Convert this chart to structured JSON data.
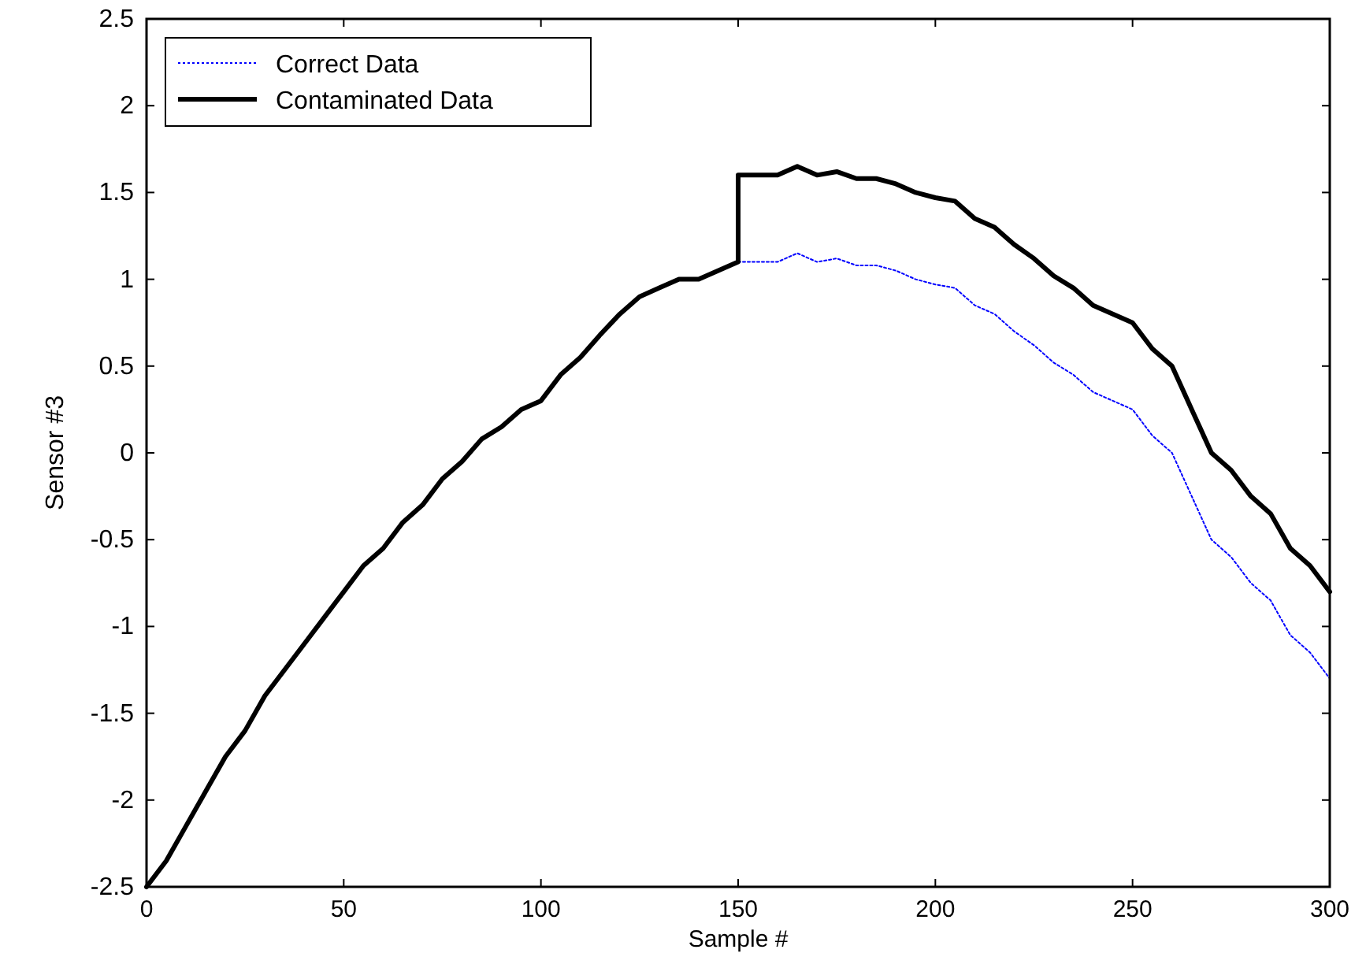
{
  "chart_data": {
    "type": "line",
    "xlabel": "Sample #",
    "ylabel": "Sensor #3",
    "xlim": [
      0,
      300
    ],
    "ylim": [
      -2.5,
      2.5
    ],
    "xticks": [
      0,
      50,
      100,
      150,
      200,
      250,
      300
    ],
    "yticks": [
      -2.5,
      -2,
      -1.5,
      -1,
      -0.5,
      0,
      0.5,
      1,
      1.5,
      2,
      2.5
    ],
    "grid": false,
    "legend": "top left",
    "series": [
      {
        "name": "Correct Data",
        "color": "#0000ff",
        "line_style": "dotted",
        "x": [
          150,
          155,
          160,
          165,
          170,
          175,
          180,
          185,
          190,
          195,
          200,
          205,
          210,
          215,
          220,
          225,
          230,
          235,
          240,
          245,
          250,
          255,
          260,
          265,
          270,
          275,
          280,
          285,
          290,
          295,
          300
        ],
        "values": [
          1.1,
          1.1,
          1.1,
          1.15,
          1.1,
          1.12,
          1.08,
          1.08,
          1.05,
          1,
          0.97,
          0.95,
          0.85,
          0.8,
          0.7,
          0.62,
          0.52,
          0.45,
          0.35,
          0.3,
          0.25,
          0.1,
          0,
          -0.25,
          -0.5,
          -0.6,
          -0.75,
          -0.85,
          -1.05,
          -1.15,
          -1.3
        ]
      },
      {
        "name": "Contaminated Data",
        "color": "#000000",
        "line_style": "solid",
        "x": [
          0,
          5,
          10,
          15,
          20,
          25,
          30,
          35,
          40,
          45,
          50,
          55,
          60,
          65,
          70,
          75,
          80,
          85,
          90,
          95,
          100,
          105,
          110,
          115,
          120,
          125,
          130,
          135,
          140,
          145,
          150,
          150,
          155,
          160,
          165,
          170,
          175,
          180,
          185,
          190,
          195,
          200,
          205,
          210,
          215,
          220,
          225,
          230,
          235,
          240,
          245,
          250,
          255,
          260,
          265,
          270,
          275,
          280,
          285,
          290,
          295,
          300
        ],
        "values": [
          -2.5,
          -2.35,
          -2.15,
          -1.95,
          -1.75,
          -1.6,
          -1.4,
          -1.25,
          -1.1,
          -0.95,
          -0.8,
          -0.65,
          -0.55,
          -0.4,
          -0.3,
          -0.15,
          -0.05,
          0.08,
          0.15,
          0.25,
          0.3,
          0.45,
          0.55,
          0.68,
          0.8,
          0.9,
          0.95,
          1,
          1,
          1.05,
          1.1,
          1.6,
          1.6,
          1.6,
          1.65,
          1.6,
          1.62,
          1.58,
          1.58,
          1.55,
          1.5,
          1.47,
          1.45,
          1.35,
          1.3,
          1.2,
          1.12,
          1.02,
          0.95,
          0.85,
          0.8,
          0.75,
          0.6,
          0.5,
          0.25,
          0,
          -0.1,
          -0.25,
          -0.35,
          -0.55,
          -0.65,
          -0.8
        ]
      }
    ]
  }
}
